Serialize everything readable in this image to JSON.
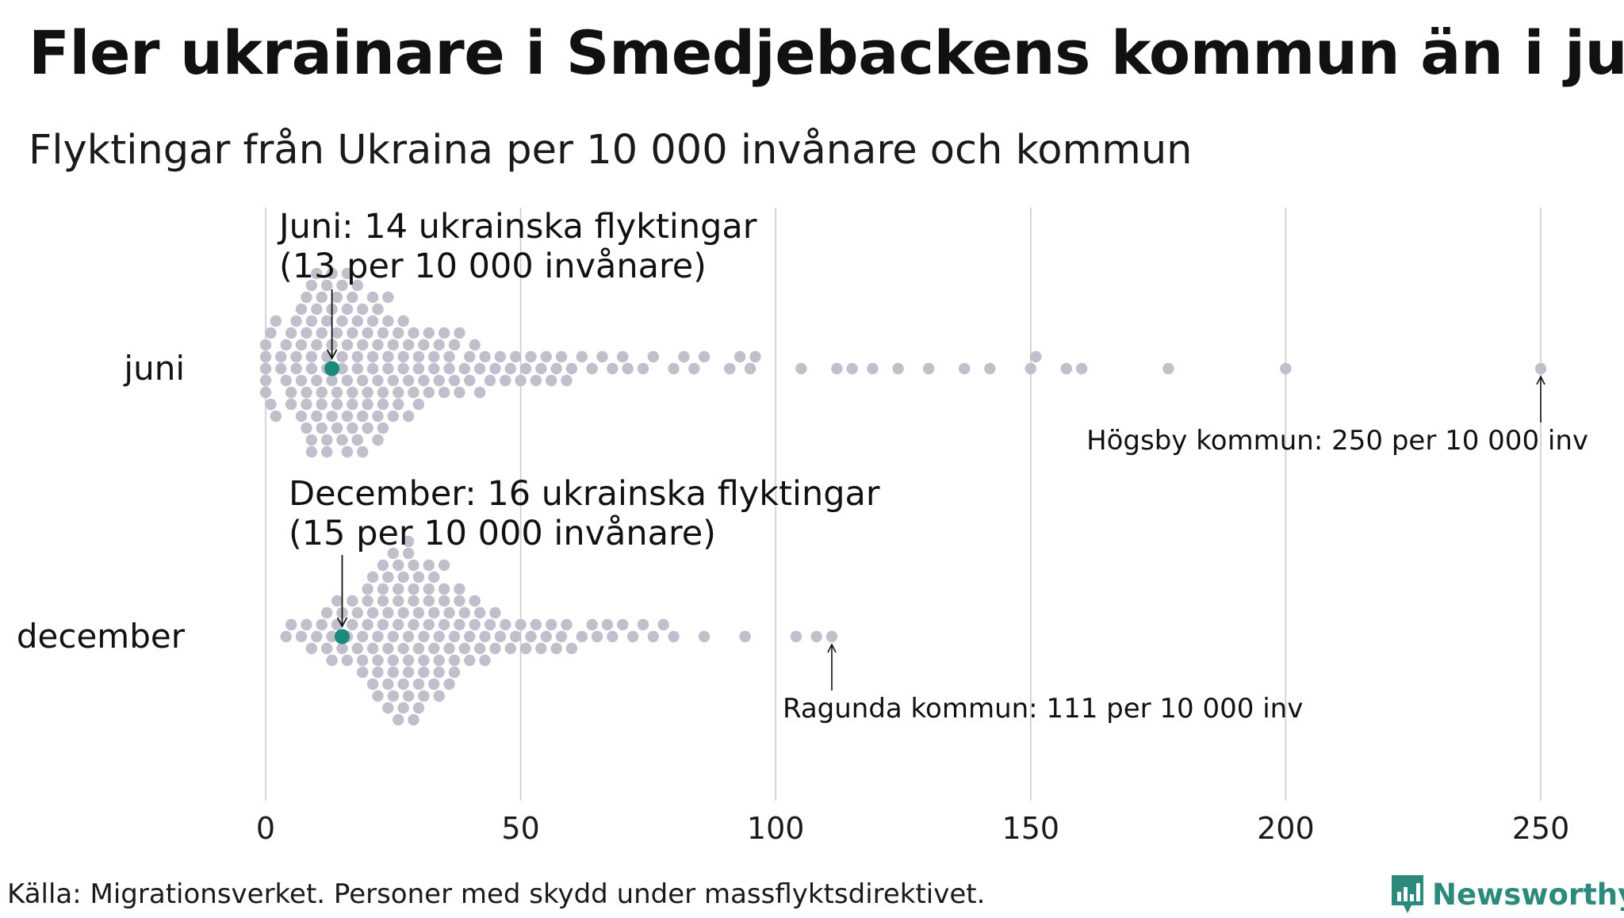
{
  "title": "Fler ukrainare i Smedjebackens kommun än i juni",
  "subtitle": "Flyktingar från Ukraina per 10 000 invånare och kommun",
  "source": "Källa: Migrationsverket. Personer med skydd under massflyktsdirektivet.",
  "brand": "Newsworthy",
  "colors": {
    "dot": "#c2bfcd",
    "highlight": "#1a8a7a",
    "grid": "#cccccc",
    "text": "#111111",
    "brand": "#2c8a7c"
  },
  "chart_data": {
    "type": "scatter",
    "subtype": "beeswarm",
    "xlim": [
      0,
      250
    ],
    "x_ticks": [
      0,
      50,
      100,
      150,
      200,
      250
    ],
    "grid": true,
    "rows": [
      {
        "label": "juni",
        "highlight": {
          "value": 13,
          "annotation": [
            "Juni: 14 ukrainska flyktingar",
            "(13 per 10 000 invånare)"
          ]
        },
        "max": {
          "value": 250,
          "annotation": "Högsby kommun: 250 per 10 000 inv"
        },
        "values": [
          0,
          0,
          0,
          0,
          0,
          1,
          1,
          2,
          2,
          3,
          3,
          4,
          4,
          5,
          5,
          5,
          6,
          6,
          6,
          7,
          7,
          7,
          7,
          8,
          8,
          8,
          8,
          8,
          9,
          9,
          9,
          9,
          9,
          9,
          10,
          10,
          10,
          10,
          10,
          11,
          11,
          11,
          11,
          11,
          12,
          12,
          12,
          12,
          12,
          12,
          13,
          13,
          13,
          13,
          13,
          14,
          14,
          14,
          14,
          14,
          15,
          15,
          15,
          15,
          15,
          16,
          16,
          16,
          16,
          16,
          16,
          17,
          17,
          17,
          17,
          17,
          18,
          18,
          18,
          18,
          18,
          19,
          19,
          19,
          19,
          19,
          20,
          20,
          20,
          20,
          21,
          21,
          21,
          21,
          22,
          22,
          22,
          22,
          22,
          23,
          23,
          23,
          23,
          24,
          24,
          24,
          24,
          25,
          25,
          25,
          26,
          26,
          26,
          27,
          27,
          27,
          28,
          28,
          28,
          29,
          29,
          30,
          30,
          30,
          31,
          31,
          32,
          32,
          33,
          33,
          34,
          34,
          35,
          35,
          36,
          36,
          37,
          37,
          38,
          38,
          39,
          40,
          40,
          41,
          42,
          42,
          43,
          44,
          45,
          46,
          47,
          48,
          49,
          50,
          51,
          52,
          53,
          54,
          55,
          56,
          57,
          58,
          59,
          60,
          62,
          64,
          66,
          68,
          70,
          71,
          74,
          76,
          80,
          82,
          84,
          86,
          91,
          93,
          95,
          96,
          105,
          112,
          115,
          119,
          124,
          130,
          137,
          142,
          150,
          151,
          157,
          160,
          177,
          200,
          250
        ]
      },
      {
        "label": "december",
        "highlight": {
          "value": 15,
          "annotation": [
            "December: 16 ukrainska flyktingar",
            "(15 per 10 000 invånare)"
          ]
        },
        "max": {
          "value": 111,
          "annotation": "Ragunda kommun: 111 per 10 000 inv"
        },
        "values": [
          4,
          5,
          7,
          8,
          9,
          10,
          11,
          12,
          12,
          13,
          13,
          14,
          14,
          15,
          15,
          16,
          16,
          17,
          17,
          18,
          18,
          19,
          19,
          19,
          20,
          20,
          20,
          21,
          21,
          21,
          21,
          22,
          22,
          22,
          22,
          23,
          23,
          23,
          23,
          24,
          24,
          24,
          24,
          24,
          25,
          25,
          25,
          25,
          25,
          26,
          26,
          26,
          26,
          26,
          27,
          27,
          27,
          27,
          27,
          28,
          28,
          28,
          28,
          28,
          28,
          29,
          29,
          29,
          29,
          29,
          30,
          30,
          30,
          30,
          30,
          31,
          31,
          31,
          31,
          32,
          32,
          32,
          32,
          33,
          33,
          33,
          33,
          34,
          34,
          34,
          34,
          35,
          35,
          35,
          35,
          36,
          36,
          36,
          37,
          37,
          37,
          38,
          38,
          38,
          39,
          39,
          40,
          40,
          41,
          41,
          42,
          42,
          43,
          43,
          44,
          45,
          45,
          46,
          47,
          48,
          49,
          50,
          51,
          52,
          53,
          54,
          55,
          56,
          57,
          58,
          59,
          60,
          62,
          64,
          65,
          67,
          68,
          70,
          72,
          74,
          76,
          78,
          80,
          86,
          94,
          104,
          108,
          111
        ]
      }
    ]
  }
}
